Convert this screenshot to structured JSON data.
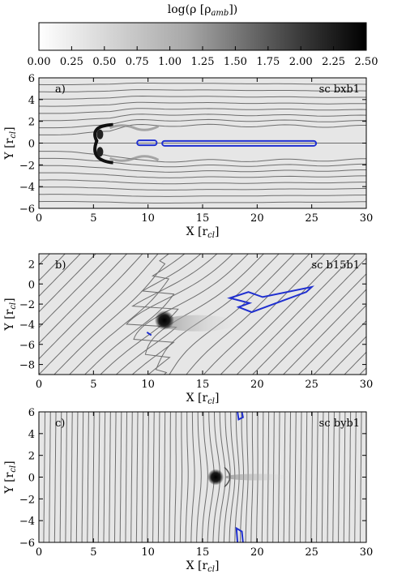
{
  "colorbar": {
    "label_main": "log(ρ [ρ",
    "label_sub": "amb",
    "label_end": "])",
    "ticks": [
      "0.00",
      "0.25",
      "0.50",
      "0.75",
      "1.00",
      "1.25",
      "1.50",
      "1.75",
      "2.00",
      "2.25",
      "2.50"
    ],
    "range": [
      0,
      2.5
    ]
  },
  "chart_data": [
    {
      "type": "heatmap",
      "panel_tag": "a)",
      "case_label": "sc bxb1",
      "xlabel_main": "X [r",
      "xlabel_sub": "cl",
      "xlabel_end": "]",
      "ylabel_main": "Y [r",
      "ylabel_sub": "cl",
      "ylabel_end": "]",
      "xlim": [
        0,
        30
      ],
      "ylim": [
        -6,
        6
      ],
      "xticks": [
        "0",
        "5",
        "10",
        "15",
        "20",
        "25",
        "30"
      ],
      "yticks": [
        "−6",
        "−4",
        "−2",
        "0",
        "2",
        "4",
        "6"
      ],
      "cloud_position": [
        6,
        0
      ],
      "field_orientation": "along x"
    },
    {
      "type": "heatmap",
      "panel_tag": "b)",
      "case_label": "sc b15b1",
      "xlabel_main": "X [r",
      "xlabel_sub": "cl",
      "xlabel_end": "]",
      "ylabel_main": "Y [r",
      "ylabel_sub": "cl",
      "ylabel_end": "]",
      "xlim": [
        0,
        30
      ],
      "ylim": [
        -9,
        3
      ],
      "xticks": [
        "0",
        "5",
        "10",
        "15",
        "20",
        "25",
        "30"
      ],
      "yticks": [
        "−8",
        "−6",
        "−4",
        "−2",
        "0",
        "2"
      ],
      "cloud_position": [
        11.5,
        -3.6
      ],
      "field_orientation": "oblique"
    },
    {
      "type": "heatmap",
      "panel_tag": "c)",
      "case_label": "sc byb1",
      "xlabel_main": "X [r",
      "xlabel_sub": "cl",
      "xlabel_end": "]",
      "ylabel_main": "Y [r",
      "ylabel_sub": "cl",
      "ylabel_end": "]",
      "xlim": [
        0,
        30
      ],
      "ylim": [
        -6,
        6
      ],
      "xticks": [
        "0",
        "5",
        "10",
        "15",
        "20",
        "25",
        "30"
      ],
      "yticks": [
        "−6",
        "−4",
        "−2",
        "0",
        "2",
        "4",
        "6"
      ],
      "cloud_position": [
        16.2,
        0
      ],
      "field_orientation": "along y"
    }
  ],
  "colors": {
    "field_lines": "#6e6e6e",
    "contour": "#1f2fd0",
    "dense": "#0a0a0a",
    "ambient": "#e6e6e6"
  }
}
